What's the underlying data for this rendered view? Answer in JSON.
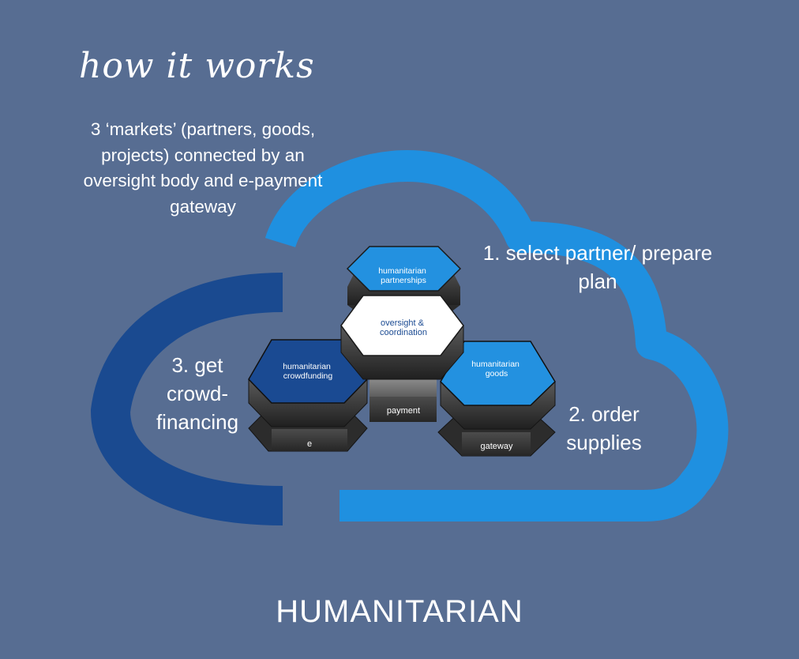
{
  "title": "how it works",
  "subtitle": "3 ‘markets’ (partners, goods, projects) connected by an oversight body and e-payment gateway",
  "steps": {
    "select": "1. select partner/ prepare plan",
    "order": "2. order supplies",
    "finance": "3. get crowd-financing"
  },
  "hexagons": {
    "partnerships": [
      "humanitarian",
      "partnerships"
    ],
    "oversight": [
      "oversight &",
      "coordination"
    ],
    "crowdfunding": [
      "humanitarian",
      "crowdfunding"
    ],
    "goods": [
      "humanitarian",
      "goods"
    ]
  },
  "base_blocks": {
    "e": "e",
    "payment": "payment",
    "gateway": "gateway"
  },
  "footer": "HUMANITARIAN",
  "colors": {
    "background": "#576d92",
    "cloud_light": "#1f90e0",
    "cloud_dark": "#1a4a90",
    "hex_light": "#2391e0",
    "hex_dark": "#1a4a92",
    "hex_white": "#ffffff",
    "block_dark": "#3a3a3a"
  }
}
